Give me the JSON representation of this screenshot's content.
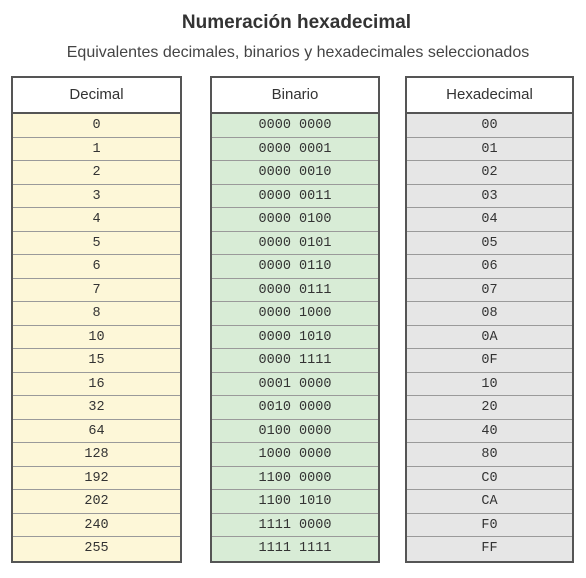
{
  "title": "Numeración hexadecimal",
  "subtitle": "Equivalentes decimales, binarios y hexadecimales seleccionados",
  "colors": {
    "decimal_bg": "#fdf7d8",
    "binary_bg": "#d8ecd6",
    "hex_bg": "#e6e6e6",
    "border": "#555555"
  },
  "table": {
    "headers": [
      "Decimal",
      "Binario",
      "Hexadecimal"
    ],
    "rows": [
      [
        "0",
        "0000 0000",
        "00"
      ],
      [
        "1",
        "0000 0001",
        "01"
      ],
      [
        "2",
        "0000 0010",
        "02"
      ],
      [
        "3",
        "0000 0011",
        "03"
      ],
      [
        "4",
        "0000 0100",
        "04"
      ],
      [
        "5",
        "0000 0101",
        "05"
      ],
      [
        "6",
        "0000 0110",
        "06"
      ],
      [
        "7",
        "0000 0111",
        "07"
      ],
      [
        "8",
        "0000 1000",
        "08"
      ],
      [
        "10",
        "0000 1010",
        "0A"
      ],
      [
        "15",
        "0000 1111",
        "0F"
      ],
      [
        "16",
        "0001 0000",
        "10"
      ],
      [
        "32",
        "0010 0000",
        "20"
      ],
      [
        "64",
        "0100 0000",
        "40"
      ],
      [
        "128",
        "1000 0000",
        "80"
      ],
      [
        "192",
        "1100 0000",
        "C0"
      ],
      [
        "202",
        "1100 1010",
        "CA"
      ],
      [
        "240",
        "1111 0000",
        "F0"
      ],
      [
        "255",
        "1111 1111",
        "FF"
      ]
    ]
  }
}
